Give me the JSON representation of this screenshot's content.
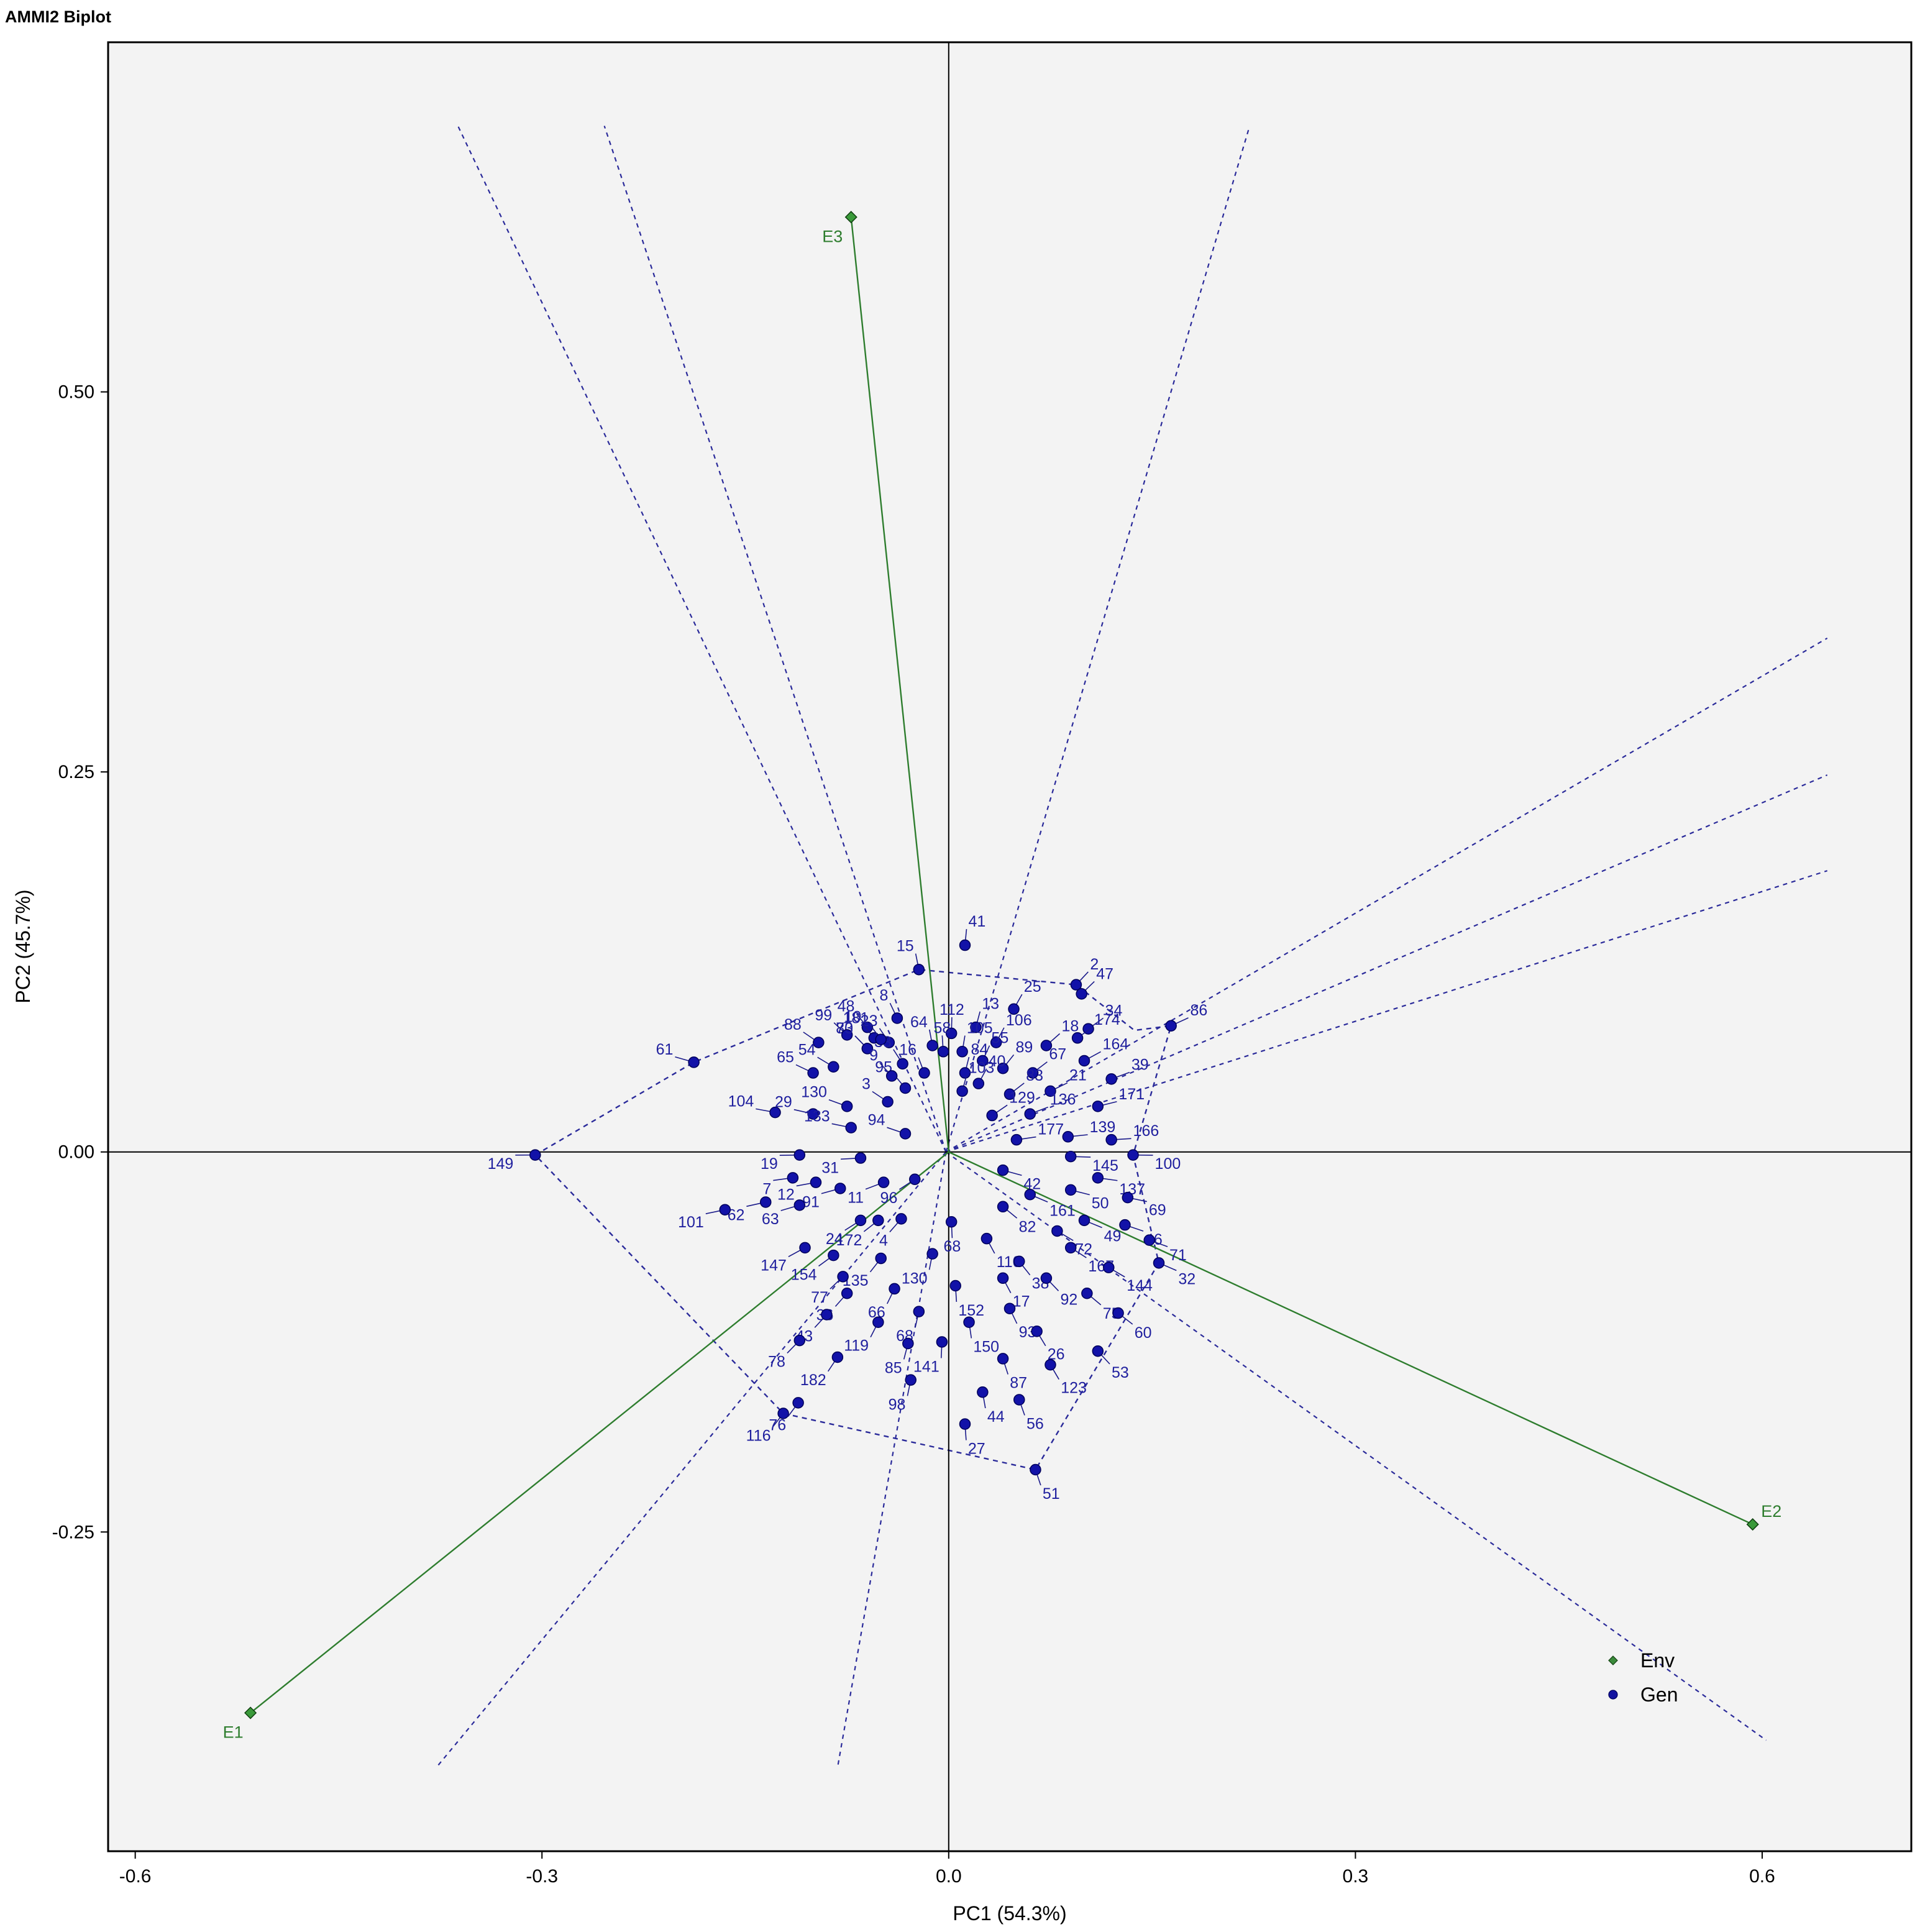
{
  "chart_data": {
    "type": "scatter",
    "title": "AMMI2 Biplot",
    "xlabel": "PC1 (54.3%)",
    "ylabel": "PC2 (45.7%)",
    "xlim": [
      -0.62,
      0.71
    ],
    "ylim": [
      -0.46,
      0.73
    ],
    "x_ticks": [
      -0.6,
      -0.3,
      0.0,
      0.3,
      0.6
    ],
    "x_tick_labels": [
      "-0.6",
      "-0.3",
      "0.0",
      "0.3",
      "0.6"
    ],
    "y_ticks": [
      -0.25,
      0.0,
      0.25,
      0.5
    ],
    "y_tick_labels": [
      "-0.25",
      "0.00",
      "0.25",
      "0.50"
    ],
    "grid": false,
    "legend": {
      "position": "bottom-right",
      "entries": [
        {
          "name": "Env",
          "marker": "diamond",
          "color": "#3a8a3a"
        },
        {
          "name": "Gen",
          "marker": "circle",
          "color": "#1414a0"
        }
      ]
    },
    "environments": [
      {
        "name": "E1",
        "x": -0.515,
        "y": -0.369
      },
      {
        "name": "E2",
        "x": 0.593,
        "y": -0.245
      },
      {
        "name": "E3",
        "x": -0.072,
        "y": 0.615
      }
    ],
    "hull": [
      [
        -0.305,
        -0.002
      ],
      [
        -0.188,
        0.059
      ],
      [
        -0.022,
        0.12
      ],
      [
        0.094,
        0.11
      ],
      [
        0.137,
        0.08
      ],
      [
        0.164,
        0.083
      ],
      [
        0.136,
        -0.002
      ],
      [
        0.155,
        -0.073
      ],
      [
        0.064,
        -0.209
      ],
      [
        -0.122,
        -0.172
      ]
    ],
    "sector_lines": [
      [
        [
          -0.002,
          0.0
        ],
        [
          -0.362,
          0.675
        ]
      ],
      [
        [
          -0.002,
          0.0
        ],
        [
          -0.254,
          0.675
        ]
      ],
      [
        [
          -0.002,
          0.0
        ],
        [
          0.222,
          0.675
        ]
      ],
      [
        [
          -0.002,
          0.0
        ],
        [
          0.648,
          0.338
        ]
      ],
      [
        [
          -0.002,
          0.0
        ],
        [
          0.648,
          0.248
        ]
      ],
      [
        [
          -0.002,
          0.0
        ],
        [
          0.648,
          0.185
        ]
      ],
      [
        [
          -0.002,
          0.0
        ],
        [
          0.603,
          -0.387
        ]
      ],
      [
        [
          -0.002,
          0.0
        ],
        [
          -0.082,
          -0.405
        ]
      ],
      [
        [
          -0.002,
          0.0
        ],
        [
          -0.378,
          -0.405
        ]
      ]
    ],
    "genotypes": [
      {
        "name": "149",
        "x": -0.305,
        "y": -0.002
      },
      {
        "name": "61",
        "x": -0.188,
        "y": 0.059
      },
      {
        "name": "116",
        "x": -0.122,
        "y": -0.172
      },
      {
        "name": "76",
        "x": -0.111,
        "y": -0.165
      },
      {
        "name": "51",
        "x": 0.064,
        "y": -0.209
      },
      {
        "name": "2",
        "x": 0.094,
        "y": 0.11
      },
      {
        "name": "86",
        "x": 0.164,
        "y": 0.083
      },
      {
        "name": "100",
        "x": 0.136,
        "y": -0.002
      },
      {
        "name": "32",
        "x": 0.155,
        "y": -0.073
      },
      {
        "name": "15",
        "x": -0.022,
        "y": 0.12
      },
      {
        "name": "41",
        "x": 0.012,
        "y": 0.136
      },
      {
        "name": "13",
        "x": 0.02,
        "y": 0.082
      },
      {
        "name": "112",
        "x": 0.002,
        "y": 0.078
      },
      {
        "name": "8",
        "x": -0.038,
        "y": 0.088
      },
      {
        "name": "25",
        "x": 0.048,
        "y": 0.094
      },
      {
        "name": "106",
        "x": 0.035,
        "y": 0.072
      },
      {
        "name": "105",
        "x": 0.01,
        "y": 0.066
      },
      {
        "name": "64",
        "x": -0.012,
        "y": 0.07
      },
      {
        "name": "48",
        "x": -0.06,
        "y": 0.082
      },
      {
        "name": "47",
        "x": 0.098,
        "y": 0.104
      },
      {
        "name": "18",
        "x": 0.072,
        "y": 0.07
      },
      {
        "name": "55",
        "x": 0.025,
        "y": 0.06
      },
      {
        "name": "58",
        "x": -0.004,
        "y": 0.066
      },
      {
        "name": "23",
        "x": -0.044,
        "y": 0.072
      },
      {
        "name": "80",
        "x": -0.06,
        "y": 0.068
      },
      {
        "name": "34",
        "x": 0.103,
        "y": 0.081
      },
      {
        "name": "174",
        "x": 0.095,
        "y": 0.075
      },
      {
        "name": "89",
        "x": 0.04,
        "y": 0.055
      },
      {
        "name": "84",
        "x": 0.012,
        "y": 0.052
      },
      {
        "name": "33",
        "x": -0.034,
        "y": 0.058
      },
      {
        "name": "99",
        "x": -0.075,
        "y": 0.077
      },
      {
        "name": "10",
        "x": -0.055,
        "y": 0.075
      },
      {
        "name": "181",
        "x": -0.05,
        "y": 0.074
      },
      {
        "name": "164",
        "x": 0.1,
        "y": 0.06
      },
      {
        "name": "67",
        "x": 0.062,
        "y": 0.052
      },
      {
        "name": "40",
        "x": 0.022,
        "y": 0.045
      },
      {
        "name": "16",
        "x": -0.018,
        "y": 0.052
      },
      {
        "name": "73",
        "x": -0.06,
        "y": 0.068
      },
      {
        "name": "88",
        "x": -0.096,
        "y": 0.072
      },
      {
        "name": "39",
        "x": 0.12,
        "y": 0.048
      },
      {
        "name": "83",
        "x": 0.045,
        "y": 0.038
      },
      {
        "name": "103",
        "x": 0.01,
        "y": 0.04
      },
      {
        "name": "95",
        "x": -0.032,
        "y": 0.042
      },
      {
        "name": "9",
        "x": -0.042,
        "y": 0.05
      },
      {
        "name": "54",
        "x": -0.085,
        "y": 0.056
      },
      {
        "name": "21",
        "x": 0.075,
        "y": 0.04
      },
      {
        "name": "171",
        "x": 0.11,
        "y": 0.03
      },
      {
        "name": "65",
        "x": -0.1,
        "y": 0.052
      },
      {
        "name": "136",
        "x": 0.06,
        "y": 0.025
      },
      {
        "name": "129",
        "x": 0.032,
        "y": 0.024
      },
      {
        "name": "130",
        "x": -0.075,
        "y": 0.03
      },
      {
        "name": "3",
        "x": -0.045,
        "y": 0.033
      },
      {
        "name": "104",
        "x": -0.128,
        "y": 0.026
      },
      {
        "name": "29",
        "x": -0.1,
        "y": 0.025
      },
      {
        "name": "166",
        "x": 0.12,
        "y": 0.008
      },
      {
        "name": "139",
        "x": 0.088,
        "y": 0.01
      },
      {
        "name": "177",
        "x": 0.05,
        "y": 0.008
      },
      {
        "name": "133",
        "x": -0.072,
        "y": 0.016
      },
      {
        "name": "94",
        "x": -0.032,
        "y": 0.012
      },
      {
        "name": "19",
        "x": -0.11,
        "y": -0.002
      },
      {
        "name": "31",
        "x": -0.065,
        "y": -0.004
      },
      {
        "name": "137",
        "x": 0.11,
        "y": -0.017
      },
      {
        "name": "145",
        "x": 0.09,
        "y": -0.003
      },
      {
        "name": "42",
        "x": 0.04,
        "y": -0.012
      },
      {
        "name": "69",
        "x": 0.132,
        "y": -0.03
      },
      {
        "name": "7",
        "x": -0.115,
        "y": -0.017
      },
      {
        "name": "12",
        "x": -0.098,
        "y": -0.02
      },
      {
        "name": "91",
        "x": -0.08,
        "y": -0.024
      },
      {
        "name": "11",
        "x": -0.048,
        "y": -0.02
      },
      {
        "name": "96",
        "x": -0.025,
        "y": -0.018
      },
      {
        "name": "50",
        "x": 0.09,
        "y": -0.025
      },
      {
        "name": "161",
        "x": 0.06,
        "y": -0.028
      },
      {
        "name": "82",
        "x": 0.04,
        "y": -0.036
      },
      {
        "name": "46",
        "x": 0.13,
        "y": -0.048
      },
      {
        "name": "71",
        "x": 0.148,
        "y": -0.058
      },
      {
        "name": "49",
        "x": 0.1,
        "y": -0.045
      },
      {
        "name": "62",
        "x": -0.135,
        "y": -0.033
      },
      {
        "name": "63",
        "x": -0.11,
        "y": -0.035
      },
      {
        "name": "101",
        "x": -0.165,
        "y": -0.038
      },
      {
        "name": "24",
        "x": -0.065,
        "y": -0.045
      },
      {
        "name": "172",
        "x": -0.052,
        "y": -0.045
      },
      {
        "name": "4",
        "x": -0.035,
        "y": -0.044
      },
      {
        "name": "68",
        "x": 0.002,
        "y": -0.046
      },
      {
        "name": "72",
        "x": 0.08,
        "y": -0.052
      },
      {
        "name": "110",
        "x": 0.028,
        "y": -0.057
      },
      {
        "name": "147",
        "x": -0.106,
        "y": -0.063
      },
      {
        "name": "154",
        "x": -0.085,
        "y": -0.068
      },
      {
        "name": "135",
        "x": -0.05,
        "y": -0.07
      },
      {
        "name": "38",
        "x": 0.052,
        "y": -0.072
      },
      {
        "name": "167",
        "x": 0.09,
        "y": -0.063
      },
      {
        "name": "144",
        "x": 0.118,
        "y": -0.076
      },
      {
        "name": "77",
        "x": -0.078,
        "y": -0.082
      },
      {
        "name": "130b",
        "x": -0.012,
        "y": -0.067
      },
      {
        "name": "17",
        "x": 0.04,
        "y": -0.083
      },
      {
        "name": "36",
        "x": -0.075,
        "y": -0.093
      },
      {
        "name": "66",
        "x": -0.04,
        "y": -0.09
      },
      {
        "name": "152",
        "x": 0.005,
        "y": -0.088
      },
      {
        "name": "92",
        "x": 0.072,
        "y": -0.083
      },
      {
        "name": "75",
        "x": 0.102,
        "y": -0.093
      },
      {
        "name": "60",
        "x": 0.125,
        "y": -0.106
      },
      {
        "name": "43",
        "x": -0.09,
        "y": -0.107
      },
      {
        "name": "68b",
        "x": -0.022,
        "y": -0.105
      },
      {
        "name": "93",
        "x": 0.045,
        "y": -0.103
      },
      {
        "name": "150",
        "x": 0.015,
        "y": -0.112
      },
      {
        "name": "119",
        "x": -0.052,
        "y": -0.112
      },
      {
        "name": "26",
        "x": 0.065,
        "y": -0.118
      },
      {
        "name": "78",
        "x": -0.11,
        "y": -0.124
      },
      {
        "name": "53",
        "x": 0.11,
        "y": -0.131
      },
      {
        "name": "85",
        "x": -0.03,
        "y": -0.126
      },
      {
        "name": "141",
        "x": -0.005,
        "y": -0.125
      },
      {
        "name": "87",
        "x": 0.04,
        "y": -0.136
      },
      {
        "name": "182",
        "x": -0.082,
        "y": -0.135
      },
      {
        "name": "123",
        "x": 0.075,
        "y": -0.14
      },
      {
        "name": "98",
        "x": -0.028,
        "y": -0.15
      },
      {
        "name": "44",
        "x": 0.025,
        "y": -0.158
      },
      {
        "name": "56",
        "x": 0.052,
        "y": -0.163
      },
      {
        "name": "27",
        "x": 0.012,
        "y": -0.179
      }
    ]
  }
}
